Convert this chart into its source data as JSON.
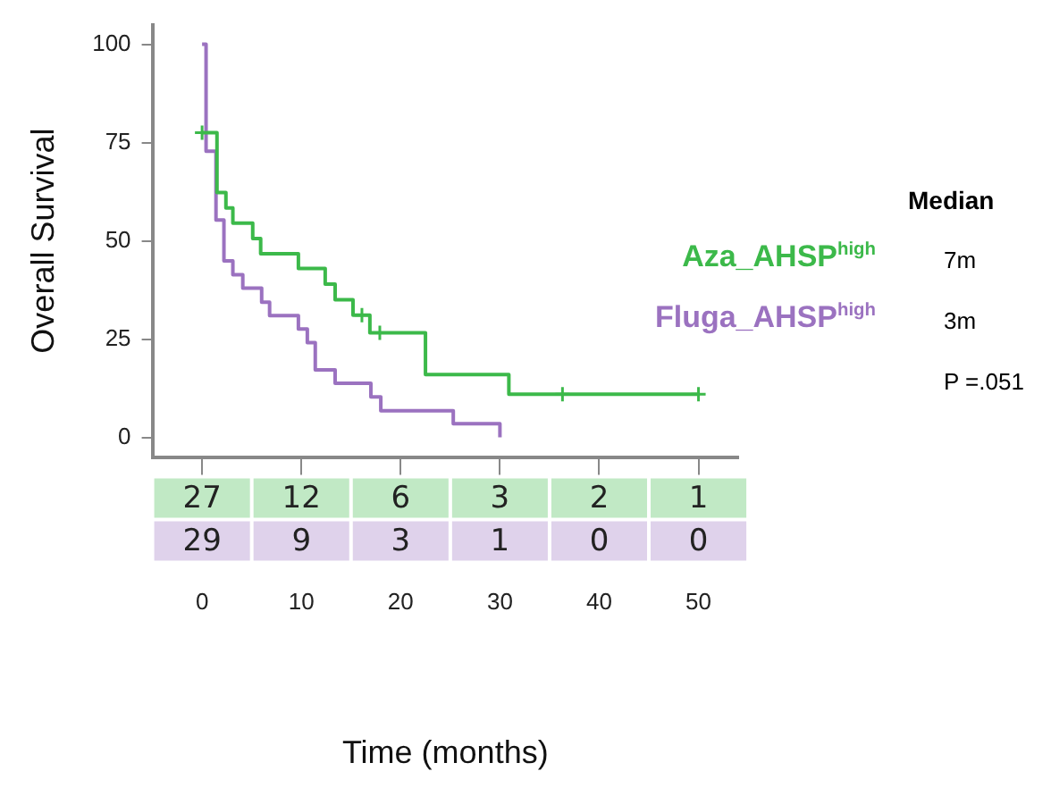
{
  "chart_data": {
    "type": "step",
    "xlabel": "Time (months)",
    "ylabel": "Overall Survival",
    "xlim": [
      -5,
      54
    ],
    "ylim": [
      -5,
      105
    ],
    "xticks": [
      0,
      10,
      20,
      30,
      40,
      50
    ],
    "yticks": [
      0,
      25,
      50,
      75,
      100
    ],
    "grid": false,
    "legend": "right",
    "line_style": "solid",
    "series": [
      {
        "name": "Aza_AHSP$^{high}$",
        "color": "#3cb94a",
        "x": [
          0,
          1.5,
          2.4,
          3.1,
          5.1,
          5.9,
          9.7,
          12.4,
          13.4,
          15.2,
          16.9,
          22.5,
          30.9,
          50
        ],
        "values": [
          77.5,
          62.3,
          58.4,
          54.5,
          50.6,
          46.7,
          43,
          39,
          35,
          31.1,
          26.6,
          16,
          11,
          11
        ]
      },
      {
        "name": "Fluga_AHSP$^{high}$",
        "color": "#9b72c0",
        "x": [
          0,
          0.4,
          1.4,
          2.2,
          3.1,
          4.1,
          6,
          6.8,
          9.7,
          10.6,
          11.4,
          13.4,
          17,
          18,
          25.3,
          30
        ],
        "values": [
          100,
          72.8,
          55.3,
          44.9,
          41.4,
          38,
          34.4,
          31,
          27.6,
          24.1,
          17.2,
          13.8,
          10.3,
          6.8,
          3.5,
          0
        ]
      },
      {
        "type": "scatter",
        "marker": "cross",
        "color": "#3cb94a",
        "x": [
          0,
          16.1,
          17.9,
          36.3,
          50
        ],
        "values": [
          77.5,
          31.1,
          26.6,
          11,
          11
        ]
      }
    ],
    "annotations": [
      "Median",
      "7m",
      "3m",
      "P =.051",
      "27",
      "12",
      "6",
      "3",
      "2",
      "1",
      "29",
      "9",
      "3",
      "1",
      "0",
      "0"
    ]
  }
}
